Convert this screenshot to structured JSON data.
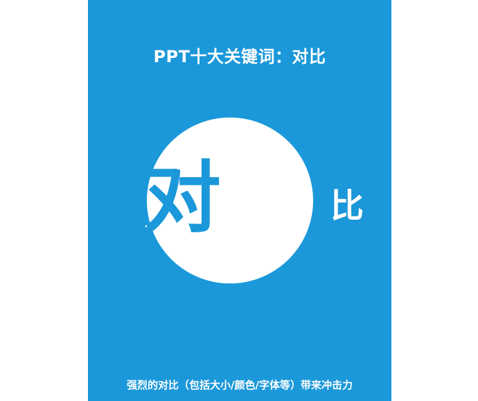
{
  "slide": {
    "title": "PPT十大关键词：对比",
    "big_left_char": "对",
    "big_right_char": "比",
    "caption": "强烈的对比（包括大小/颜色/字体等）带来冲击力"
  },
  "colors": {
    "background": "#1b98d9",
    "circle": "#ffffff",
    "text_light": "#ffffff",
    "text_dark": "#1b98d9"
  }
}
